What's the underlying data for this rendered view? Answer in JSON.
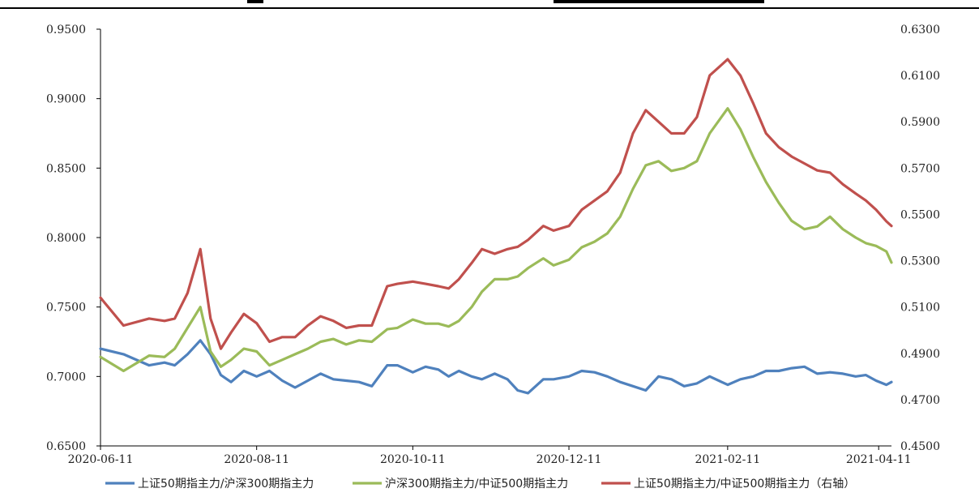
{
  "chart_data": {
    "type": "line",
    "title": "",
    "xlabel": "",
    "ylabel": "",
    "x_ticks": [
      "2020-06-11",
      "2020-08-11",
      "2020-10-11",
      "2020-12-11",
      "2021-02-11",
      "2021-04-11"
    ],
    "x_range": [
      "2020-06-11",
      "2021-04-16"
    ],
    "left_axis": {
      "ylim": [
        0.65,
        0.95
      ],
      "tick_labels": [
        "0.6500",
        "0.7000",
        "0.7500",
        "0.8000",
        "0.8500",
        "0.9000",
        "0.9500"
      ]
    },
    "right_axis": {
      "ylim": [
        0.45,
        0.63
      ],
      "tick_labels": [
        "0.4500",
        "0.4700",
        "0.4900",
        "0.5100",
        "0.5300",
        "0.5500",
        "0.5700",
        "0.5900",
        "0.6100",
        "0.6300"
      ]
    },
    "grid": false,
    "legend_position": "bottom",
    "series": [
      {
        "name": "上证50期指主力/沪深300期指主力",
        "axis": "left",
        "color": "#4f81bd",
        "points": [
          [
            "2020-06-11",
            0.72
          ],
          [
            "2020-06-20",
            0.716
          ],
          [
            "2020-06-30",
            0.708
          ],
          [
            "2020-07-06",
            0.71
          ],
          [
            "2020-07-10",
            0.708
          ],
          [
            "2020-07-15",
            0.716
          ],
          [
            "2020-07-20",
            0.726
          ],
          [
            "2020-07-24",
            0.716
          ],
          [
            "2020-07-28",
            0.701
          ],
          [
            "2020-08-01",
            0.696
          ],
          [
            "2020-08-06",
            0.704
          ],
          [
            "2020-08-11",
            0.7
          ],
          [
            "2020-08-16",
            0.704
          ],
          [
            "2020-08-21",
            0.697
          ],
          [
            "2020-08-26",
            0.692
          ],
          [
            "2020-08-31",
            0.697
          ],
          [
            "2020-09-05",
            0.702
          ],
          [
            "2020-09-10",
            0.698
          ],
          [
            "2020-09-15",
            0.697
          ],
          [
            "2020-09-20",
            0.696
          ],
          [
            "2020-09-25",
            0.693
          ],
          [
            "2020-10-01",
            0.708
          ],
          [
            "2020-10-05",
            0.708
          ],
          [
            "2020-10-11",
            0.703
          ],
          [
            "2020-10-16",
            0.707
          ],
          [
            "2020-10-21",
            0.705
          ],
          [
            "2020-10-25",
            0.7
          ],
          [
            "2020-10-29",
            0.704
          ],
          [
            "2020-11-03",
            0.7
          ],
          [
            "2020-11-07",
            0.698
          ],
          [
            "2020-11-12",
            0.702
          ],
          [
            "2020-11-17",
            0.698
          ],
          [
            "2020-11-21",
            0.69
          ],
          [
            "2020-11-25",
            0.688
          ],
          [
            "2020-12-01",
            0.698
          ],
          [
            "2020-12-05",
            0.698
          ],
          [
            "2020-12-11",
            0.7
          ],
          [
            "2020-12-16",
            0.704
          ],
          [
            "2020-12-21",
            0.703
          ],
          [
            "2020-12-26",
            0.7
          ],
          [
            "2020-12-31",
            0.696
          ],
          [
            "2021-01-05",
            0.693
          ],
          [
            "2021-01-10",
            0.69
          ],
          [
            "2021-01-15",
            0.7
          ],
          [
            "2021-01-20",
            0.698
          ],
          [
            "2021-01-25",
            0.693
          ],
          [
            "2021-01-30",
            0.695
          ],
          [
            "2021-02-04",
            0.7
          ],
          [
            "2021-02-11",
            0.694
          ],
          [
            "2021-02-16",
            0.698
          ],
          [
            "2021-02-21",
            0.7
          ],
          [
            "2021-02-26",
            0.704
          ],
          [
            "2021-03-03",
            0.704
          ],
          [
            "2021-03-08",
            0.706
          ],
          [
            "2021-03-13",
            0.707
          ],
          [
            "2021-03-18",
            0.702
          ],
          [
            "2021-03-23",
            0.703
          ],
          [
            "2021-03-28",
            0.702
          ],
          [
            "2021-04-02",
            0.7
          ],
          [
            "2021-04-06",
            0.701
          ],
          [
            "2021-04-10",
            0.697
          ],
          [
            "2021-04-14",
            0.694
          ],
          [
            "2021-04-16",
            0.696
          ]
        ]
      },
      {
        "name": "沪深300期指主力/中证500期指主力",
        "axis": "left",
        "color": "#9bbb59",
        "points": [
          [
            "2020-06-11",
            0.714
          ],
          [
            "2020-06-20",
            0.704
          ],
          [
            "2020-06-30",
            0.715
          ],
          [
            "2020-07-06",
            0.714
          ],
          [
            "2020-07-10",
            0.72
          ],
          [
            "2020-07-15",
            0.735
          ],
          [
            "2020-07-20",
            0.75
          ],
          [
            "2020-07-24",
            0.718
          ],
          [
            "2020-07-28",
            0.707
          ],
          [
            "2020-08-01",
            0.712
          ],
          [
            "2020-08-06",
            0.72
          ],
          [
            "2020-08-11",
            0.718
          ],
          [
            "2020-08-16",
            0.708
          ],
          [
            "2020-08-21",
            0.712
          ],
          [
            "2020-08-26",
            0.716
          ],
          [
            "2020-08-31",
            0.72
          ],
          [
            "2020-09-05",
            0.725
          ],
          [
            "2020-09-10",
            0.727
          ],
          [
            "2020-09-15",
            0.723
          ],
          [
            "2020-09-20",
            0.726
          ],
          [
            "2020-09-25",
            0.725
          ],
          [
            "2020-10-01",
            0.734
          ],
          [
            "2020-10-05",
            0.735
          ],
          [
            "2020-10-11",
            0.741
          ],
          [
            "2020-10-16",
            0.738
          ],
          [
            "2020-10-21",
            0.738
          ],
          [
            "2020-10-25",
            0.736
          ],
          [
            "2020-10-29",
            0.74
          ],
          [
            "2020-11-03",
            0.75
          ],
          [
            "2020-11-07",
            0.761
          ],
          [
            "2020-11-12",
            0.77
          ],
          [
            "2020-11-17",
            0.77
          ],
          [
            "2020-11-21",
            0.772
          ],
          [
            "2020-11-25",
            0.778
          ],
          [
            "2020-12-01",
            0.785
          ],
          [
            "2020-12-05",
            0.78
          ],
          [
            "2020-12-11",
            0.784
          ],
          [
            "2020-12-16",
            0.793
          ],
          [
            "2020-12-21",
            0.797
          ],
          [
            "2020-12-26",
            0.803
          ],
          [
            "2020-12-31",
            0.815
          ],
          [
            "2021-01-05",
            0.835
          ],
          [
            "2021-01-10",
            0.852
          ],
          [
            "2021-01-15",
            0.855
          ],
          [
            "2021-01-20",
            0.848
          ],
          [
            "2021-01-25",
            0.85
          ],
          [
            "2021-01-30",
            0.855
          ],
          [
            "2021-02-04",
            0.875
          ],
          [
            "2021-02-11",
            0.893
          ],
          [
            "2021-02-16",
            0.878
          ],
          [
            "2021-02-21",
            0.858
          ],
          [
            "2021-02-26",
            0.84
          ],
          [
            "2021-03-03",
            0.825
          ],
          [
            "2021-03-08",
            0.812
          ],
          [
            "2021-03-13",
            0.806
          ],
          [
            "2021-03-18",
            0.808
          ],
          [
            "2021-03-23",
            0.815
          ],
          [
            "2021-03-28",
            0.806
          ],
          [
            "2021-04-02",
            0.8
          ],
          [
            "2021-04-06",
            0.796
          ],
          [
            "2021-04-10",
            0.794
          ],
          [
            "2021-04-14",
            0.79
          ],
          [
            "2021-04-16",
            0.782
          ]
        ]
      },
      {
        "name": "上证50期指主力/中证500期指主力（右轴）",
        "axis": "right",
        "color": "#c0504d",
        "points": [
          [
            "2020-06-11",
            0.514
          ],
          [
            "2020-06-20",
            0.502
          ],
          [
            "2020-06-30",
            0.505
          ],
          [
            "2020-07-06",
            0.504
          ],
          [
            "2020-07-10",
            0.505
          ],
          [
            "2020-07-15",
            0.516
          ],
          [
            "2020-07-20",
            0.535
          ],
          [
            "2020-07-24",
            0.505
          ],
          [
            "2020-07-28",
            0.492
          ],
          [
            "2020-08-01",
            0.499
          ],
          [
            "2020-08-06",
            0.507
          ],
          [
            "2020-08-11",
            0.503
          ],
          [
            "2020-08-16",
            0.495
          ],
          [
            "2020-08-21",
            0.497
          ],
          [
            "2020-08-26",
            0.497
          ],
          [
            "2020-08-31",
            0.502
          ],
          [
            "2020-09-05",
            0.506
          ],
          [
            "2020-09-10",
            0.504
          ],
          [
            "2020-09-15",
            0.501
          ],
          [
            "2020-09-20",
            0.502
          ],
          [
            "2020-09-25",
            0.502
          ],
          [
            "2020-10-01",
            0.519
          ],
          [
            "2020-10-05",
            0.52
          ],
          [
            "2020-10-11",
            0.521
          ],
          [
            "2020-10-16",
            0.52
          ],
          [
            "2020-10-21",
            0.519
          ],
          [
            "2020-10-25",
            0.518
          ],
          [
            "2020-10-29",
            0.522
          ],
          [
            "2020-11-03",
            0.529
          ],
          [
            "2020-11-07",
            0.535
          ],
          [
            "2020-11-12",
            0.533
          ],
          [
            "2020-11-17",
            0.535
          ],
          [
            "2020-11-21",
            0.536
          ],
          [
            "2020-11-25",
            0.539
          ],
          [
            "2020-12-01",
            0.545
          ],
          [
            "2020-12-05",
            0.543
          ],
          [
            "2020-12-11",
            0.545
          ],
          [
            "2020-12-16",
            0.552
          ],
          [
            "2020-12-21",
            0.556
          ],
          [
            "2020-12-26",
            0.56
          ],
          [
            "2020-12-31",
            0.568
          ],
          [
            "2021-01-05",
            0.585
          ],
          [
            "2021-01-10",
            0.595
          ],
          [
            "2021-01-15",
            0.59
          ],
          [
            "2021-01-20",
            0.585
          ],
          [
            "2021-01-25",
            0.585
          ],
          [
            "2021-01-30",
            0.592
          ],
          [
            "2021-02-04",
            0.61
          ],
          [
            "2021-02-11",
            0.617
          ],
          [
            "2021-02-16",
            0.61
          ],
          [
            "2021-02-21",
            0.598
          ],
          [
            "2021-02-26",
            0.585
          ],
          [
            "2021-03-03",
            0.579
          ],
          [
            "2021-03-08",
            0.575
          ],
          [
            "2021-03-13",
            0.572
          ],
          [
            "2021-03-18",
            0.569
          ],
          [
            "2021-03-23",
            0.568
          ],
          [
            "2021-03-28",
            0.563
          ],
          [
            "2021-04-02",
            0.559
          ],
          [
            "2021-04-06",
            0.556
          ],
          [
            "2021-04-10",
            0.552
          ],
          [
            "2021-04-14",
            0.547
          ],
          [
            "2021-04-16",
            0.545
          ]
        ]
      }
    ]
  }
}
